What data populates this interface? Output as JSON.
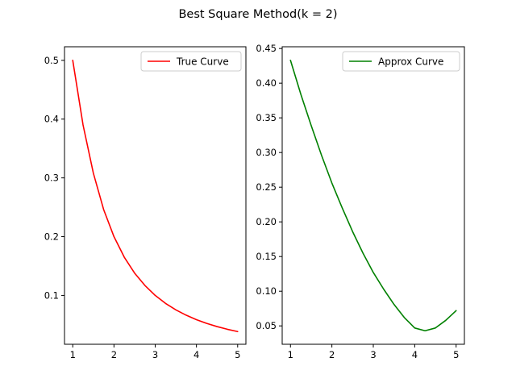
{
  "figure": {
    "title": "Best Square Method(k = 2)"
  },
  "chart_data": [
    {
      "type": "line",
      "title": "",
      "xlabel": "",
      "ylabel": "",
      "xlim": [
        0.8,
        5.2
      ],
      "ylim": [
        0.0169,
        0.5231
      ],
      "xticks": [
        "1",
        "2",
        "3",
        "4",
        "5"
      ],
      "yticks": [
        "0.1",
        "0.2",
        "0.3",
        "0.4",
        "0.5"
      ],
      "grid": false,
      "legend": "top-right",
      "series": [
        {
          "name": "True Curve",
          "color": "#ff0000",
          "x": [
            1.0,
            1.25,
            1.5,
            1.75,
            2.0,
            2.25,
            2.5,
            2.75,
            3.0,
            3.25,
            3.5,
            3.75,
            4.0,
            4.25,
            4.5,
            4.75,
            5.0
          ],
          "y": [
            0.5,
            0.39,
            0.308,
            0.246,
            0.2,
            0.165,
            0.138,
            0.117,
            0.1,
            0.0865,
            0.0755,
            0.0664,
            0.0588,
            0.0524,
            0.047,
            0.0424,
            0.0385
          ]
        }
      ]
    },
    {
      "type": "line",
      "title": "",
      "xlabel": "",
      "ylabel": "",
      "xlim": [
        0.8,
        5.2
      ],
      "ylim": [
        0.0235,
        0.4525
      ],
      "xticks": [
        "1",
        "2",
        "3",
        "4",
        "5"
      ],
      "yticks": [
        "0.05",
        "0.10",
        "0.15",
        "0.20",
        "0.25",
        "0.30",
        "0.35",
        "0.40",
        "0.45"
      ],
      "grid": false,
      "legend": "top-right",
      "series": [
        {
          "name": "Approx Curve",
          "color": "#008000",
          "x": [
            1.0,
            1.25,
            1.5,
            1.75,
            2.0,
            2.25,
            2.5,
            2.75,
            3.0,
            3.25,
            3.5,
            3.75,
            4.0,
            4.25,
            4.5,
            4.75,
            5.0
          ],
          "y": [
            0.433,
            0.384,
            0.339,
            0.296,
            0.256,
            0.22,
            0.186,
            0.155,
            0.127,
            0.103,
            0.081,
            0.062,
            0.047,
            0.043,
            0.047,
            0.058,
            0.072
          ]
        }
      ]
    }
  ]
}
